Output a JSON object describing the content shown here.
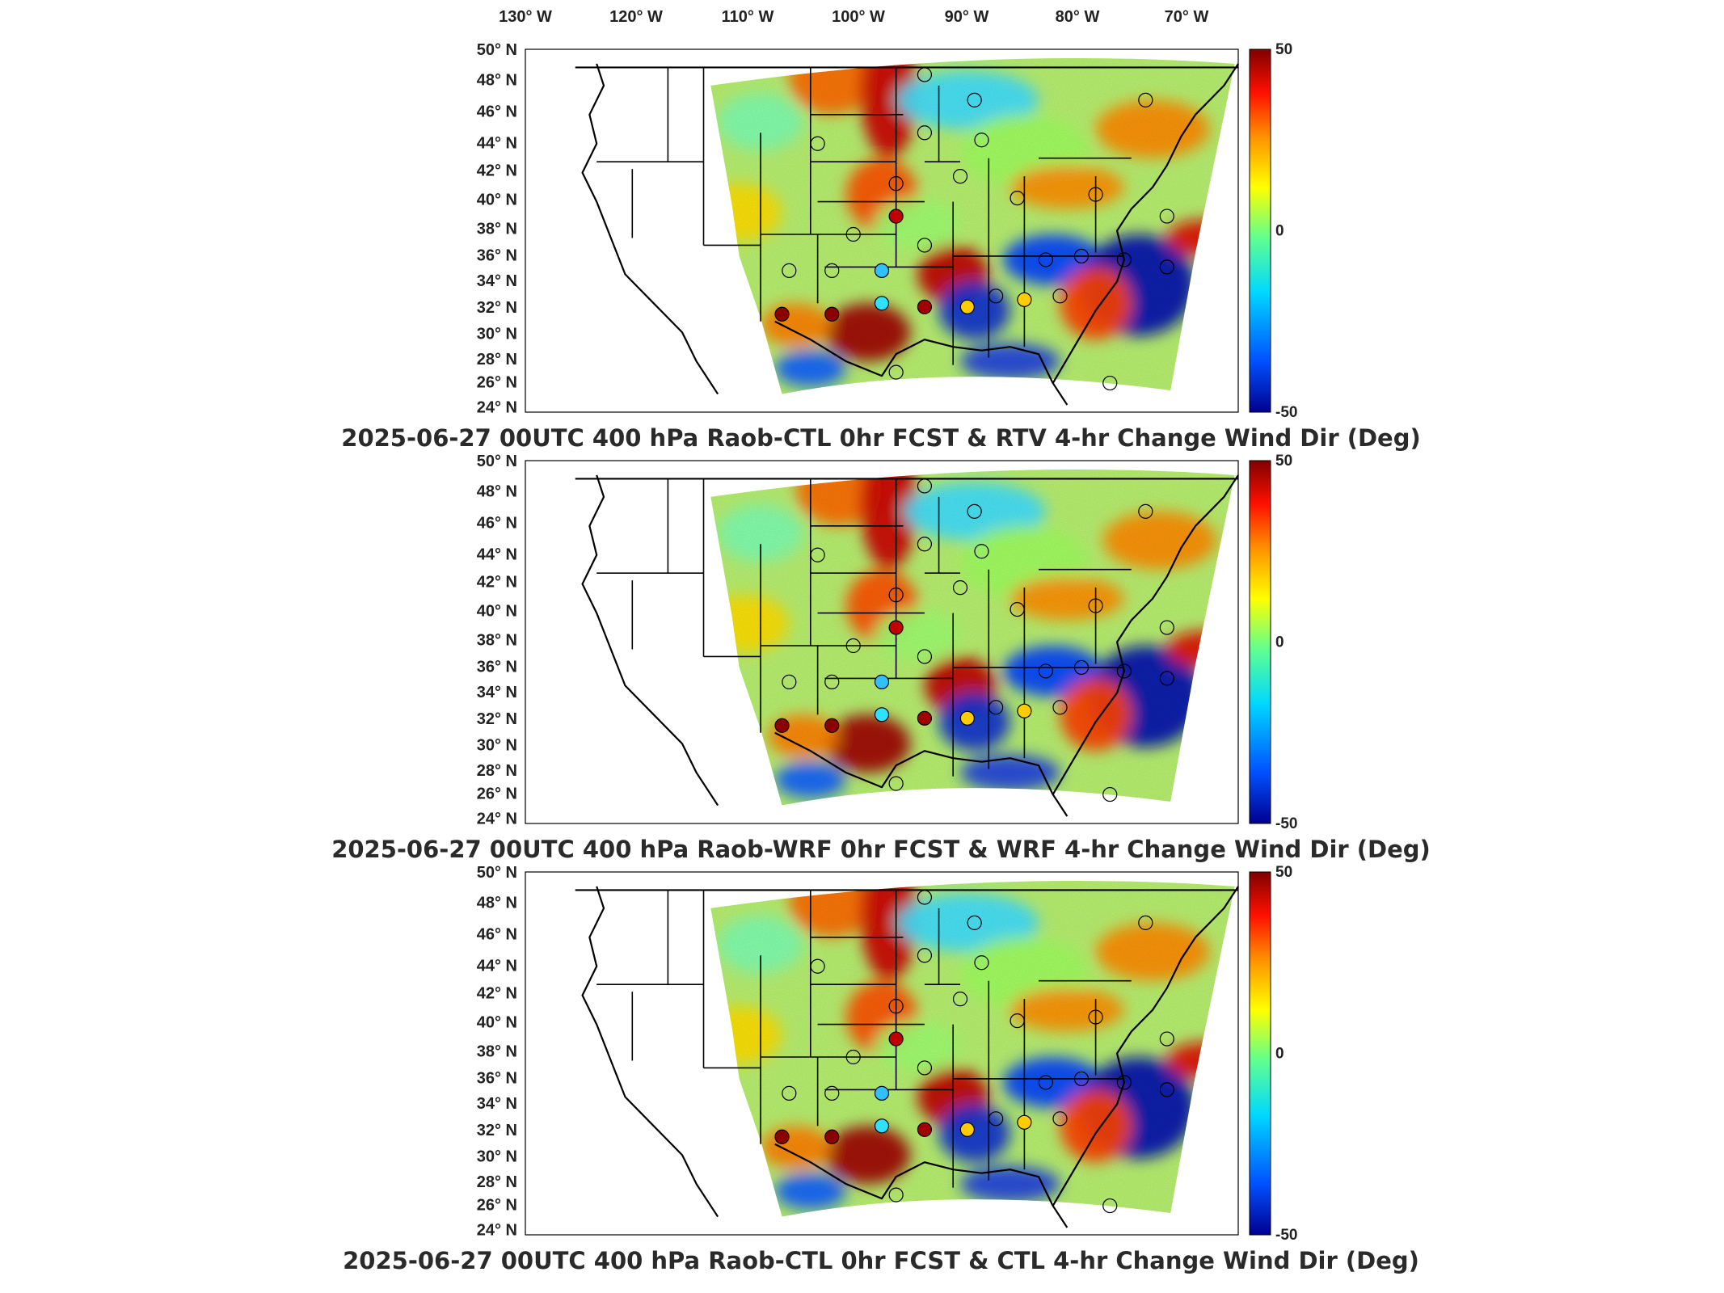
{
  "lon_labels": [
    "130° W",
    "120° W",
    "110° W",
    "100° W",
    "90° W",
    "80° W",
    "70° W"
  ],
  "lat_labels": [
    "50° N",
    "48° N",
    "46° N",
    "44° N",
    "42° N",
    "40° N",
    "38° N",
    "36° N",
    "34° N",
    "32° N",
    "30° N",
    "28° N",
    "26° N",
    "24° N"
  ],
  "colorbar": {
    "max_label": "50",
    "mid_label": "0",
    "min_label": "-50",
    "colors": [
      "#00008f",
      "#0050ff",
      "#00d8ff",
      "#60ff90",
      "#ffff00",
      "#ff9000",
      "#ff1000",
      "#800000"
    ]
  },
  "panels": [
    {
      "title": "2025-06-27 00UTC 400 hPa Raob-CTL 0hr FCST & RTV 4-hr Change Wind Dir (Deg)"
    },
    {
      "title": "2025-06-27 00UTC 400 hPa Raob-WRF 0hr FCST & WRF 4-hr Change Wind Dir (Deg)"
    },
    {
      "title": "2025-06-27 00UTC 400 hPa Raob-CTL 0hr FCST & CTL 4-hr Change Wind Dir (Deg)"
    }
  ],
  "map_data": {
    "domain": "CONUS (east of ~113° W)",
    "field": "4-hr change in wind direction (deg), 400 hPa",
    "markers": "raob minus forecast wind direction difference (colored circles)",
    "color_range": [
      -50,
      50
    ]
  }
}
